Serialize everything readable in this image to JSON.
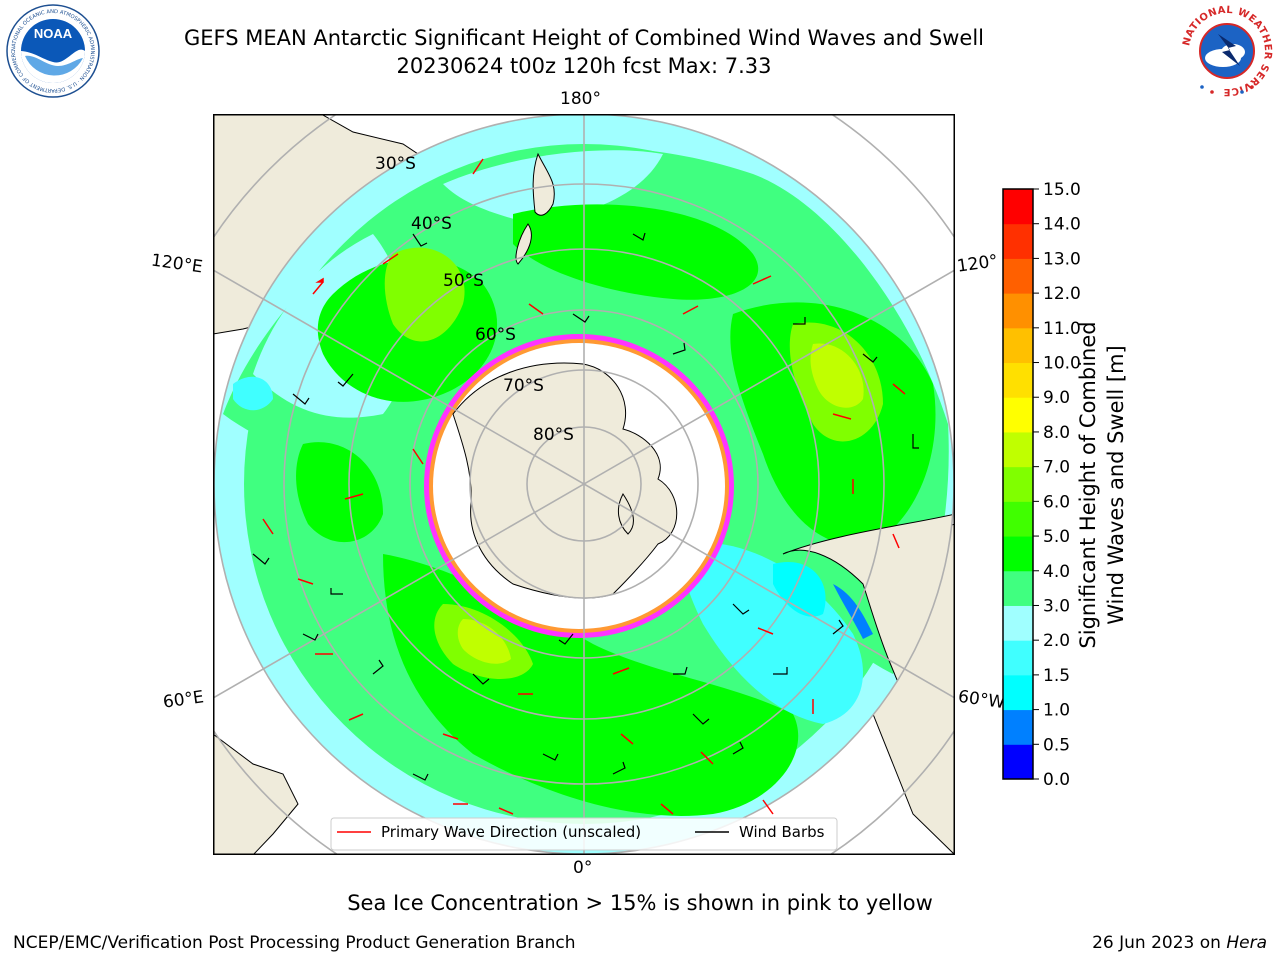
{
  "title": {
    "line1": "GEFS MEAN Antarctic Significant Height of Combined Wind Waves and Swell",
    "line2": "20230624 t00z 120h fcst   Max: 7.33"
  },
  "logos": {
    "left": {
      "icon": "noaa-logo",
      "text": "NOAA",
      "ring_text": "NATIONAL OCEANIC AND ATMOSPHERIC ADMINISTRATION · U.S. DEPARTMENT OF COMMERCE"
    },
    "right": {
      "icon": "national-weather-service-logo",
      "ring_text": "NATIONAL WEATHER SERVICE"
    }
  },
  "map": {
    "projection": "south-polar-stereographic",
    "longitude_labels": {
      "top": "180°",
      "bottom": "0°",
      "left_top": "120°E",
      "left_bottom": "60°E",
      "right_top": "120°",
      "right_bottom": "60°W"
    },
    "latitude_labels": [
      "30°S",
      "40°S",
      "50°S",
      "60°S",
      "70°S",
      "80°S"
    ],
    "colors": {
      "land": "#efebdb",
      "ice": "#ffffff",
      "grid": "#b0b0b0",
      "wave_arrow": "#ff0000",
      "wind_barb": "#000000",
      "ice_edge": [
        "#ff33ff",
        "#ff9933",
        "#ffff00"
      ]
    }
  },
  "legend": {
    "items": [
      {
        "label": "Primary Wave Direction (unscaled)",
        "color": "#ff0000"
      },
      {
        "label": "Wind Barbs",
        "color": "#000000"
      }
    ]
  },
  "colorbar": {
    "title_line1": "Significant Height of Combined",
    "title_line2": "Wind Waves and Swell [m]",
    "ticks": [
      "0.0",
      "0.5",
      "1.0",
      "1.5",
      "2.0",
      "3.0",
      "4.0",
      "5.0",
      "6.0",
      "7.0",
      "8.0",
      "9.0",
      "10.0",
      "11.0",
      "12.0",
      "13.0",
      "14.0",
      "15.0"
    ],
    "colors": [
      "#0000ff",
      "#0080ff",
      "#00ffff",
      "#40ffff",
      "#a0ffff",
      "#40ff80",
      "#00ff00",
      "#40ff00",
      "#80ff00",
      "#c0ff00",
      "#ffff00",
      "#ffe000",
      "#ffc000",
      "#ff9000",
      "#ff6000",
      "#ff3000",
      "#ff0000"
    ]
  },
  "chart_data": {
    "type": "heatmap",
    "variable": "Significant Height of Combined Wind Waves and Swell [m]",
    "max_value": 7.33,
    "value_range": [
      0.0,
      15.0
    ],
    "levels": [
      0.0,
      0.5,
      1.0,
      1.5,
      2.0,
      3.0,
      4.0,
      5.0,
      6.0,
      7.0,
      8.0,
      9.0,
      10.0,
      11.0,
      12.0,
      13.0,
      14.0,
      15.0
    ]
  },
  "notes": {
    "ice": "Sea Ice Concentration > 15% is shown in pink to yellow"
  },
  "footer": {
    "left": "NCEP/EMC/Verification Post Processing Product Generation Branch",
    "right_date": "26 Jun 2023 on",
    "right_host": "Hera"
  }
}
